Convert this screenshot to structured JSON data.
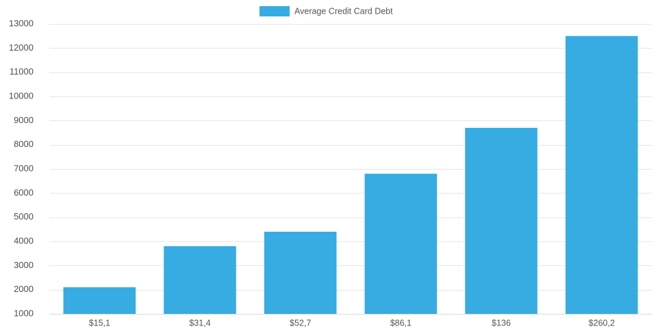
{
  "chart_data": {
    "type": "bar",
    "categories": [
      "$15,1",
      "$31,4",
      "$52,7",
      "$86,1",
      "$136",
      "$260,2"
    ],
    "series": [
      {
        "name": "Average Credit Card Debt",
        "values": [
          2100,
          3800,
          4400,
          6800,
          8700,
          12500
        ],
        "color": "#36ace2"
      }
    ],
    "ylim": [
      1000,
      13000
    ],
    "yticks": [
      1000,
      2000,
      3000,
      4000,
      5000,
      6000,
      7000,
      8000,
      9000,
      10000,
      11000,
      12000,
      13000
    ],
    "grid": true,
    "legend_position": "top-center"
  }
}
